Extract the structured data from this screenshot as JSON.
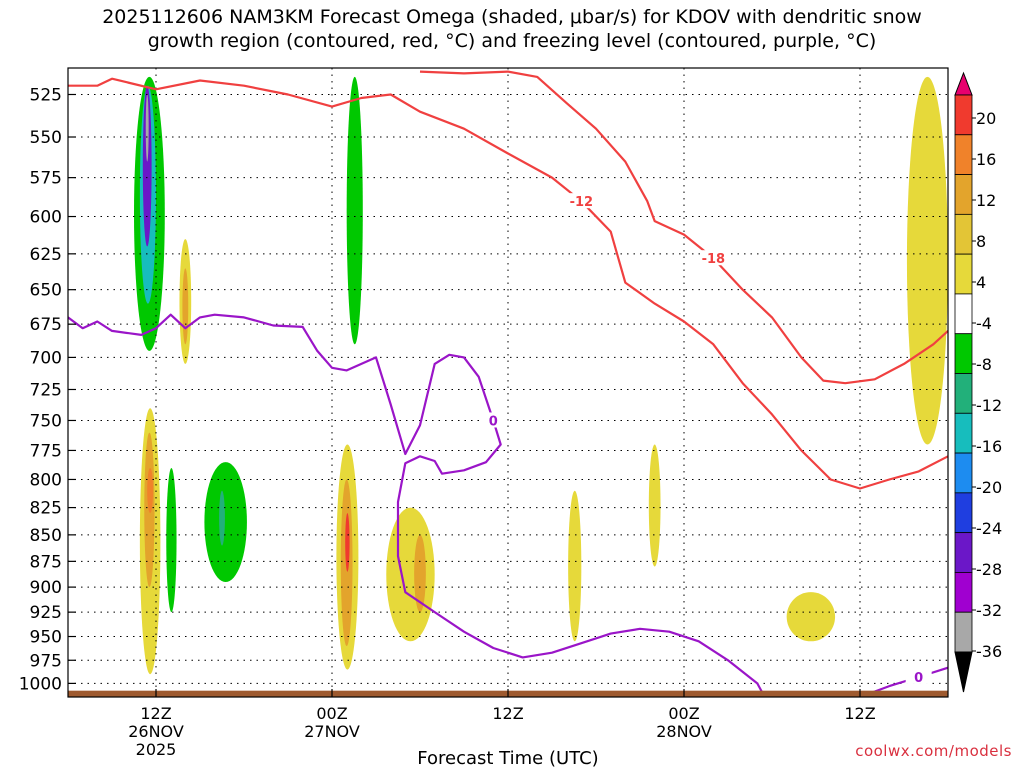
{
  "title_line1": "2025112606 NAM3KM Forecast Omega (shaded, μbar/s) for KDOV with dendritic snow",
  "title_line2": "growth region (contoured, red, °C) and freezing level (contoured, purple, °C)",
  "credit": "coolwx.com/models",
  "chart_data": {
    "type": "heatmap",
    "title": "2025112606 NAM3KM Forecast Omega (shaded, μbar/s) for KDOV with dendritic snow growth region (contoured, red, °C) and freezing level (contoured, purple, °C)",
    "xlabel": "Forecast Time (UTC)",
    "ylabel": "",
    "x_hours_range": [
      6,
      66
    ],
    "x_ticks": [
      {
        "hour": 12,
        "label": "12Z",
        "date": "26NOV",
        "year": "2025"
      },
      {
        "hour": 24,
        "label": "00Z",
        "date": "27NOV",
        "year": ""
      },
      {
        "hour": 36,
        "label": "12Z",
        "date": "",
        "year": ""
      },
      {
        "hour": 48,
        "label": "00Z",
        "date": "28NOV",
        "year": ""
      },
      {
        "hour": 60,
        "label": "12Z",
        "date": "",
        "year": ""
      }
    ],
    "y_ticks": [
      "525",
      "550",
      "575",
      "600",
      "625",
      "650",
      "675",
      "700",
      "725",
      "750",
      "775",
      "800",
      "825",
      "850",
      "875",
      "900",
      "925",
      "950",
      "975",
      "1000"
    ],
    "y_range_hpa": [
      1015,
      510
    ],
    "colorbar": {
      "levels": [
        "20",
        "16",
        "12",
        "8",
        "4",
        "-4",
        "-8",
        "-12",
        "-16",
        "-20",
        "-24",
        "-28",
        "-32",
        "-36"
      ],
      "colors": [
        "#e8006e",
        "#f03a2e",
        "#f0822a",
        "#e3a42c",
        "#e3c536",
        "#e6d93a",
        "#ffffff",
        "#00c800",
        "#22b07a",
        "#17bdbd",
        "#1d8cf0",
        "#1f3ee0",
        "#6b17c8",
        "#a000d0",
        "#a8a8a8",
        "#000000"
      ]
    },
    "omega_regions": [
      {
        "level": 4,
        "color": "#e6d93a",
        "name": "rising-core-12z",
        "t0": 10.9,
        "t1": 12.3,
        "p0": 740,
        "p1": 990
      },
      {
        "level": 8,
        "color": "#e3a42c",
        "name": "rising-core-12z",
        "t0": 11.2,
        "t1": 11.9,
        "p0": 760,
        "p1": 900
      },
      {
        "level": 12,
        "color": "#f0822a",
        "name": "rising-core-12z",
        "t0": 11.4,
        "t1": 11.8,
        "p0": 790,
        "p1": 830
      },
      {
        "level": 4,
        "color": "#e6d93a",
        "name": "rising-upper-13z",
        "t0": 13.6,
        "t1": 14.4,
        "p0": 615,
        "p1": 705
      },
      {
        "level": 8,
        "color": "#e3a42c",
        "name": "rising-upper-13z",
        "t0": 13.8,
        "t1": 14.2,
        "p0": 635,
        "p1": 690
      },
      {
        "level": 4,
        "color": "#e6d93a",
        "name": "rising-00z",
        "t0": 24.3,
        "t1": 25.8,
        "p0": 770,
        "p1": 985
      },
      {
        "level": 8,
        "color": "#e3a42c",
        "name": "rising-00z",
        "t0": 24.6,
        "t1": 25.4,
        "p0": 800,
        "p1": 960
      },
      {
        "level": 16,
        "color": "#f03a2e",
        "name": "rising-00z",
        "t0": 24.9,
        "t1": 25.2,
        "p0": 830,
        "p1": 885
      },
      {
        "level": 4,
        "color": "#e6d93a",
        "name": "rising-03z",
        "t0": 27.7,
        "t1": 31.0,
        "p0": 825,
        "p1": 955
      },
      {
        "level": 8,
        "color": "#e3a42c",
        "name": "rising-03z",
        "t0": 29.6,
        "t1": 30.4,
        "p0": 850,
        "p1": 925
      },
      {
        "level": 4,
        "color": "#e6d93a",
        "name": "rising-18z",
        "t0": 40.1,
        "t1": 41.0,
        "p0": 810,
        "p1": 955
      },
      {
        "level": 4,
        "color": "#e6d93a",
        "name": "rising-22z",
        "t0": 45.6,
        "t1": 46.4,
        "p0": 770,
        "p1": 880
      },
      {
        "level": 4,
        "color": "#e6d93a",
        "name": "rising-08z",
        "t0": 55.0,
        "t1": 58.3,
        "p0": 905,
        "p1": 955
      },
      {
        "level": 4,
        "color": "#e6d93a",
        "name": "rising-edge",
        "t0": 63.2,
        "t1": 66.0,
        "p0": 515,
        "p1": 770
      }
    ],
    "omega_sinking_regions": [
      {
        "level": -8,
        "color": "#00c800",
        "name": "sinking-11z",
        "t0": 10.5,
        "t1": 12.6,
        "p0": 515,
        "p1": 695
      },
      {
        "level": -16,
        "color": "#17bdbd",
        "name": "sinking-11z",
        "t0": 10.9,
        "t1": 12.0,
        "p0": 520,
        "p1": 660
      },
      {
        "level": -24,
        "color": "#6b17c8",
        "name": "sinking-11z",
        "t0": 11.1,
        "t1": 11.7,
        "p0": 520,
        "p1": 620
      },
      {
        "level": -32,
        "color": "#a8a8a8",
        "name": "sinking-11z",
        "t0": 11.3,
        "t1": 11.5,
        "p0": 525,
        "p1": 565
      },
      {
        "level": -4,
        "color": "#00c800",
        "name": "sinking-13z-low",
        "t0": 12.7,
        "t1": 13.4,
        "p0": 790,
        "p1": 925
      },
      {
        "level": -4,
        "color": "#00c800",
        "name": "sinking-16z",
        "t0": 15.3,
        "t1": 18.2,
        "p0": 785,
        "p1": 895
      },
      {
        "level": -12,
        "color": "#22b07a",
        "name": "sinking-16z",
        "t0": 16.3,
        "t1": 16.7,
        "p0": 810,
        "p1": 860
      },
      {
        "level": -4,
        "color": "#00c800",
        "name": "sinking-01z",
        "t0": 25.0,
        "t1": 26.1,
        "p0": 515,
        "p1": 690
      }
    ],
    "dgz_contours": [
      {
        "label": "-12",
        "points": [
          [
            6,
            520
          ],
          [
            8,
            520
          ],
          [
            9,
            516
          ],
          [
            12,
            522
          ],
          [
            15,
            517
          ],
          [
            18,
            520
          ],
          [
            21,
            525
          ],
          [
            24,
            532
          ],
          [
            26,
            527
          ],
          [
            28,
            525
          ],
          [
            30,
            535
          ],
          [
            33,
            545
          ],
          [
            36,
            560
          ],
          [
            39,
            575
          ],
          [
            41,
            590
          ],
          [
            43,
            610
          ],
          [
            44,
            645
          ],
          [
            46,
            660
          ],
          [
            48,
            673
          ],
          [
            50,
            690
          ],
          [
            52,
            720
          ],
          [
            54,
            745
          ],
          [
            56,
            775
          ],
          [
            58,
            800
          ],
          [
            60,
            808
          ],
          [
            62,
            800
          ],
          [
            64,
            793
          ],
          [
            66,
            780
          ]
        ]
      },
      {
        "label": "-18",
        "points": [
          [
            30,
            512
          ],
          [
            33,
            513
          ],
          [
            36,
            512
          ],
          [
            38,
            515
          ],
          [
            40,
            530
          ],
          [
            42,
            545
          ],
          [
            44,
            565
          ],
          [
            45.5,
            590
          ],
          [
            46,
            603
          ],
          [
            48,
            612
          ],
          [
            50,
            628
          ],
          [
            52,
            650
          ],
          [
            54,
            670
          ],
          [
            56,
            700
          ],
          [
            57.5,
            718
          ],
          [
            59,
            720
          ],
          [
            61,
            717
          ],
          [
            63,
            705
          ],
          [
            65,
            690
          ],
          [
            66,
            680
          ]
        ]
      }
    ],
    "freezing_contours": [
      {
        "label": "0",
        "points": [
          [
            6,
            670
          ],
          [
            7,
            678
          ],
          [
            8,
            673
          ],
          [
            9,
            680
          ],
          [
            11,
            683
          ],
          [
            12,
            678
          ],
          [
            13,
            668
          ],
          [
            14,
            678
          ],
          [
            15,
            670
          ],
          [
            16,
            668
          ],
          [
            18,
            670
          ],
          [
            20,
            676
          ],
          [
            22,
            677
          ],
          [
            23,
            695
          ],
          [
            24,
            708
          ],
          [
            25,
            710
          ],
          [
            27,
            700
          ],
          [
            28,
            737
          ],
          [
            29,
            778
          ],
          [
            30,
            754
          ],
          [
            31,
            705
          ],
          [
            32,
            698
          ],
          [
            33,
            700
          ],
          [
            34,
            715
          ],
          [
            35,
            750
          ],
          [
            35.5,
            770
          ],
          [
            34.5,
            785
          ],
          [
            33,
            792
          ],
          [
            31.5,
            795
          ],
          [
            31,
            784
          ],
          [
            30,
            780
          ],
          [
            29,
            786
          ],
          [
            28.5,
            820
          ],
          [
            28.5,
            870
          ],
          [
            29,
            905
          ],
          [
            31,
            925
          ],
          [
            33,
            945
          ],
          [
            35,
            962
          ],
          [
            37,
            972
          ],
          [
            39,
            967
          ],
          [
            41,
            957
          ],
          [
            43,
            947
          ],
          [
            45,
            942
          ],
          [
            47,
            945
          ],
          [
            49,
            955
          ],
          [
            51,
            975
          ],
          [
            53,
            1000
          ],
          [
            53.5,
            1015
          ]
        ]
      },
      {
        "label": "0",
        "points": [
          [
            60,
            1015
          ],
          [
            62,
            1003
          ],
          [
            64,
            993
          ],
          [
            66,
            983
          ]
        ]
      }
    ],
    "terrain_top_hpa": 1008
  }
}
